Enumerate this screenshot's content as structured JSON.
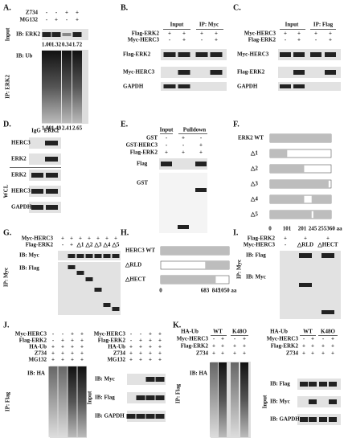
{
  "panels": [
    {
      "label": "A.",
      "treatments": [
        {
          "name": "Z734",
          "signs": [
            "-",
            "-",
            "+",
            "+"
          ]
        },
        {
          "name": "MG132",
          "signs": [
            "-",
            "+",
            "-",
            "+"
          ]
        }
      ],
      "blots": [
        "IB: ERK2",
        "IB: Ub"
      ],
      "sides": [
        "Input",
        "IP: ERK2"
      ],
      "quant_top": [
        "1.00",
        "1.32",
        "0.34",
        "1.72"
      ],
      "quant_bottom": [
        "1.00",
        "1.49",
        "2.41",
        "2.65"
      ]
    },
    {
      "label": "B.",
      "headers": [
        "Input",
        "IP: Myc"
      ],
      "treatments": [
        {
          "name": "Flag-ERK2",
          "signs": [
            "+",
            "+",
            "+",
            "+"
          ]
        },
        {
          "name": "Myc-HERC3",
          "signs": [
            "-",
            "+",
            "-",
            "+"
          ]
        }
      ],
      "blots": [
        "Flag-ERK2",
        "Myc-HERC3",
        "GAPDH"
      ]
    },
    {
      "label": "C.",
      "headers": [
        "Input",
        "IP: Flag"
      ],
      "treatments": [
        {
          "name": "Myc-HERC3",
          "signs": [
            "+",
            "+",
            "+",
            "+"
          ]
        },
        {
          "name": "Flag-ERK2",
          "signs": [
            "-",
            "+",
            "-",
            "+"
          ]
        }
      ],
      "blots": [
        "Myc-HERC3",
        "Flag-ERK2",
        "GAPDH"
      ]
    },
    {
      "label": "D.",
      "headers": [
        "IgG",
        "ERK2"
      ],
      "blots": [
        "HERC3",
        "ERK2",
        "ERK2",
        "HERC3",
        "GAPDH"
      ],
      "sides": [
        "WCL"
      ]
    },
    {
      "label": "E.",
      "headers": [
        "Input",
        "Pulldown"
      ],
      "treatments": [
        {
          "name": "GST",
          "signs": [
            "-",
            "+",
            "-"
          ]
        },
        {
          "name": "GST-HERC3",
          "signs": [
            "-",
            "-",
            "+"
          ]
        },
        {
          "name": "Flag-ERK2",
          "signs": [
            "+",
            "+",
            "+"
          ]
        }
      ],
      "blots": [
        "Flag",
        "GST"
      ]
    },
    {
      "label": "F.",
      "rows": [
        "ERK2 WT",
        "△1",
        "△2",
        "△3",
        "△4",
        "△5"
      ],
      "ticks": [
        "0",
        "101",
        "201",
        "245",
        "255",
        "360 aa"
      ]
    },
    {
      "label": "G.",
      "treatments": [
        {
          "name": "Myc-HERC3",
          "signs": [
            "+",
            "+",
            "+",
            "+",
            "+",
            "+",
            "+"
          ]
        },
        {
          "name": "Flag-ERK2",
          "signs": [
            "-",
            "+",
            "△1",
            "△2",
            "△3",
            "△4",
            "△5"
          ]
        }
      ],
      "blots": [
        "IB: Myc",
        "IB: Flag"
      ],
      "sides": [
        "IP: Myc"
      ]
    },
    {
      "label": "H.",
      "rows": [
        "HERC3 WT",
        "△RLD",
        "△HECT"
      ],
      "ticks": [
        "0",
        "683",
        "845",
        "1050 aa"
      ]
    },
    {
      "label": "I.",
      "treatments": [
        {
          "name": "Flag-ERK2",
          "signs": [
            "+",
            "+",
            "+"
          ]
        },
        {
          "name": "Myc-HERC3",
          "signs": [
            "-",
            "△RLD",
            "△HECT"
          ]
        }
      ],
      "blots": [
        "IB: Flag",
        "IB: Myc"
      ],
      "sides": [
        "IP: Myc"
      ]
    },
    {
      "label": "J.",
      "treatments_left": [
        {
          "name": "Myc-HERC3",
          "signs": [
            "-",
            "-",
            "+",
            "+"
          ]
        },
        {
          "name": "Flag-ERK2",
          "signs": [
            "-",
            "+",
            "+",
            "+"
          ]
        },
        {
          "name": "HA-Ub",
          "signs": [
            "+",
            "+",
            "+",
            "+"
          ]
        },
        {
          "name": "Z734",
          "signs": [
            "+",
            "+",
            "+",
            "+"
          ]
        },
        {
          "name": "MG132",
          "signs": [
            "+",
            "+",
            "+",
            "+"
          ]
        }
      ],
      "treatments_right": [
        {
          "name": "Myc-HERC3",
          "signs": [
            "-",
            "-",
            "+",
            "+"
          ]
        },
        {
          "name": "Flag-ERK2",
          "signs": [
            "-",
            "+",
            "+",
            "+"
          ]
        },
        {
          "name": "HA-Ub",
          "signs": [
            "+",
            "+",
            "+",
            "+"
          ]
        },
        {
          "name": "Z734",
          "signs": [
            "+",
            "+",
            "+",
            "+"
          ]
        },
        {
          "name": "MG132",
          "signs": [
            "+",
            "+",
            "+",
            "+"
          ]
        }
      ],
      "blots_left": [
        "IB: HA"
      ],
      "blots_right": [
        "IB: Myc",
        "IB: Flag",
        "IB: GAPDH"
      ],
      "sides": [
        "IP: Flag",
        "Input"
      ]
    },
    {
      "label": "K.",
      "headers_left": [
        "HA-Ub",
        "WT",
        "K48O"
      ],
      "treatments_left": [
        {
          "name": "Myc-HERC3",
          "signs": [
            "-",
            "+",
            "-",
            "+"
          ]
        },
        {
          "name": "Flag-ERK2",
          "signs": [
            "+",
            "+",
            "+",
            "+"
          ]
        },
        {
          "name": "Z734",
          "signs": [
            "+",
            "+",
            "+",
            "+"
          ]
        }
      ],
      "headers_right": [
        "HA-Ub",
        "WT",
        "K48O"
      ],
      "treatments_right": [
        {
          "name": "Myc-HERC3",
          "signs": [
            "-",
            "+",
            "-",
            "+"
          ]
        },
        {
          "name": "Flag-ERK2",
          "signs": [
            "+",
            "+",
            "+",
            "+"
          ]
        },
        {
          "name": "Z734",
          "signs": [
            "+",
            "+",
            "+",
            "+"
          ]
        }
      ],
      "blots_left": [
        "IB: HA"
      ],
      "blots_right": [
        "IB: Flag",
        "IB: Myc",
        "IB: GAPDH"
      ],
      "sides": [
        "IP: Flag",
        "Input"
      ]
    }
  ]
}
